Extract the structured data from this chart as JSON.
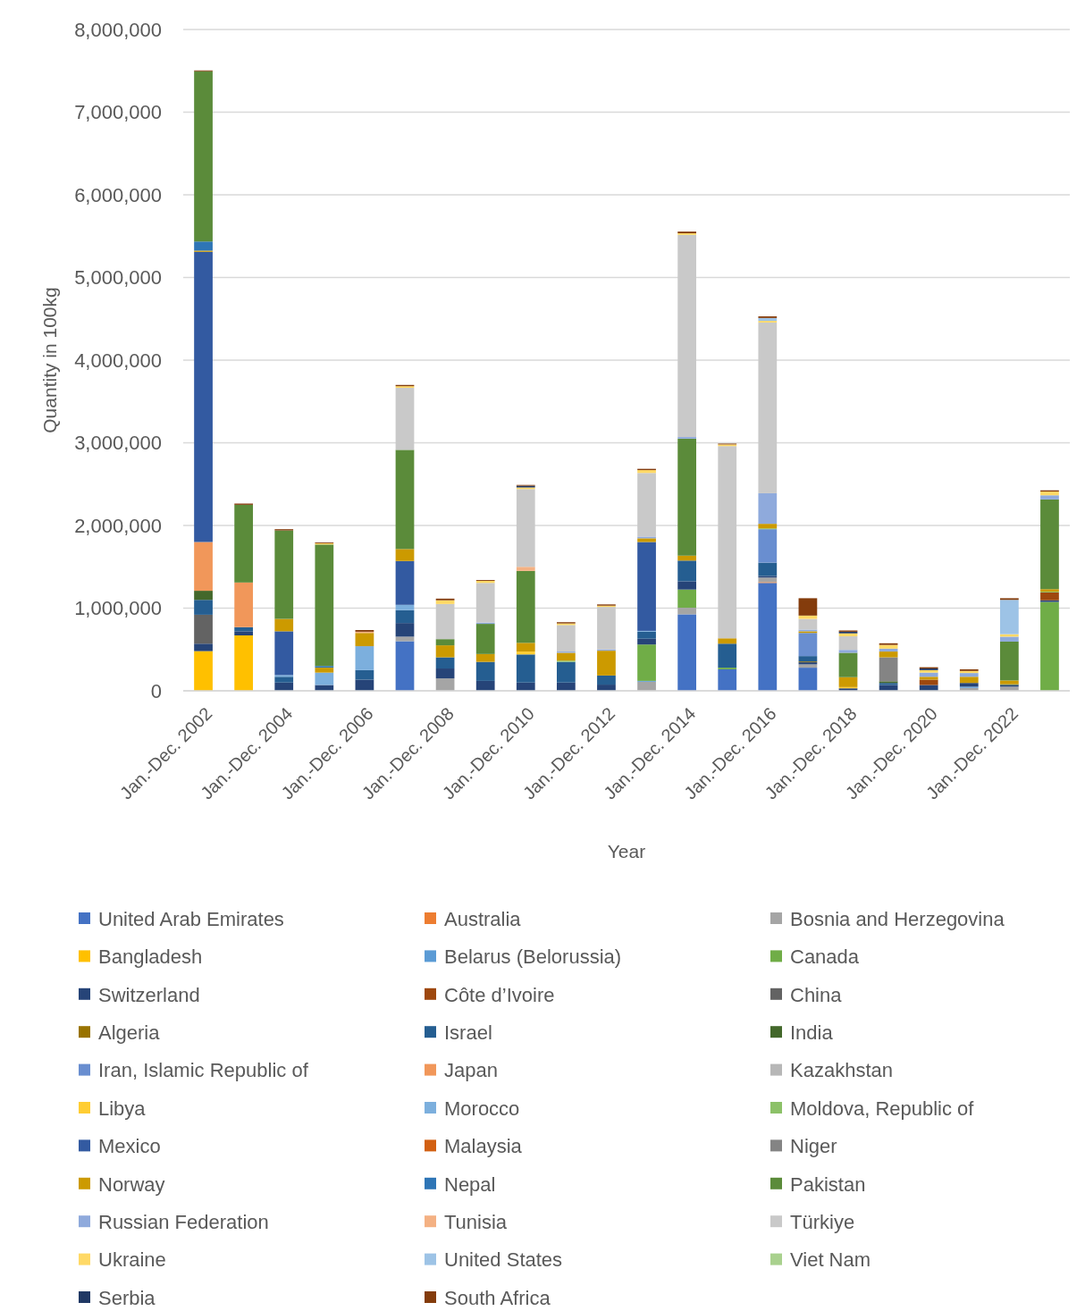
{
  "chart_data": {
    "type": "bar",
    "stacked": true,
    "xlabel": "Year",
    "ylabel": "Quantity in 100kg",
    "grid": "y",
    "legend": "bottom",
    "categories": [
      "Jan.-Dec. 2002",
      null,
      "Jan.-Dec. 2004",
      null,
      "Jan.-Dec. 2006",
      null,
      "Jan.-Dec. 2008",
      null,
      "Jan.-Dec. 2010",
      null,
      "Jan.-Dec. 2012",
      null,
      "Jan.-Dec. 2014",
      null,
      "Jan.-Dec. 2016",
      null,
      "Jan.-Dec. 2018",
      null,
      "Jan.-Dec. 2020",
      null,
      "Jan.-Dec. 2022",
      null
    ],
    "ylim": [
      0,
      8000000
    ],
    "yticks": [
      0,
      {
        "value": 1000000,
        "label": "1,000,000"
      },
      {
        "value": 2000000,
        "label": "2,000,000"
      },
      {
        "value": 3000000,
        "label": "3,000,000"
      },
      {
        "value": 4000000,
        "label": "4,000,000"
      },
      {
        "value": 5000000,
        "label": "5,000,000"
      },
      {
        "value": 6000000,
        "label": "6,000,000"
      },
      {
        "value": 7000000,
        "label": "7,000,000"
      },
      {
        "value": 8000000,
        "label": "8,000,000"
      }
    ],
    "series": [
      {
        "name": "United Arab Emirates",
        "color": "#4472c4",
        "values": [
          null,
          null,
          null,
          null,
          null,
          600000,
          null,
          null,
          null,
          null,
          null,
          null,
          925000,
          260000,
          1305000,
          280000,
          null,
          null,
          null,
          null,
          null,
          null
        ]
      },
      {
        "name": "Australia",
        "color": "#ed7d31",
        "values": [
          null,
          null,
          null,
          null,
          null,
          null,
          null,
          null,
          null,
          null,
          null,
          null,
          null,
          null,
          10000,
          null,
          null,
          null,
          null,
          null,
          null,
          null
        ]
      },
      {
        "name": "Bosnia and Herzegovina",
        "color": "#a5a5a5",
        "values": [
          null,
          null,
          null,
          null,
          null,
          55000,
          150000,
          null,
          null,
          null,
          null,
          110000,
          80000,
          null,
          55000,
          40000,
          null,
          null,
          null,
          35000,
          50000,
          null
        ]
      },
      {
        "name": "Bangladesh",
        "color": "#ffc000",
        "values": [
          480000,
          670000,
          null,
          null,
          null,
          null,
          null,
          null,
          null,
          null,
          null,
          null,
          null,
          null,
          null,
          null,
          null,
          null,
          null,
          null,
          null,
          null
        ]
      },
      {
        "name": "Belarus (Belorussia)",
        "color": "#5b9bd5",
        "values": [
          null,
          null,
          null,
          null,
          null,
          null,
          null,
          null,
          null,
          null,
          null,
          10000,
          null,
          null,
          null,
          null,
          null,
          null,
          null,
          15000,
          null,
          null
        ]
      },
      {
        "name": "Canada",
        "color": "#70ad47",
        "values": [
          null,
          null,
          null,
          null,
          null,
          null,
          null,
          null,
          null,
          null,
          null,
          440000,
          220000,
          20000,
          null,
          null,
          null,
          null,
          null,
          null,
          null,
          1075000
        ]
      },
      {
        "name": "Switzerland",
        "color": "#264478",
        "values": [
          90000,
          50000,
          100000,
          70000,
          135000,
          165000,
          120000,
          120000,
          100000,
          100000,
          75000,
          70000,
          100000,
          null,
          20000,
          25000,
          30000,
          70000,
          70000,
          45000,
          20000,
          20000
        ]
      },
      {
        "name": "Côte d’Ivoire",
        "color": "#9e480e",
        "values": [
          null,
          null,
          null,
          null,
          null,
          null,
          null,
          null,
          null,
          null,
          null,
          null,
          null,
          null,
          null,
          null,
          null,
          null,
          65000,
          null,
          null,
          95000
        ]
      },
      {
        "name": "China",
        "color": "#636363",
        "values": [
          350000,
          null,
          null,
          null,
          null,
          null,
          null,
          null,
          null,
          null,
          null,
          null,
          null,
          null,
          null,
          null,
          null,
          null,
          null,
          null,
          null,
          null
        ]
      },
      {
        "name": "Algeria",
        "color": "#997300",
        "values": [
          null,
          null,
          null,
          null,
          null,
          null,
          null,
          null,
          null,
          null,
          null,
          null,
          null,
          null,
          null,
          10000,
          null,
          null,
          null,
          null,
          null,
          null
        ]
      },
      {
        "name": "Israel",
        "color": "#255e91",
        "values": [
          180000,
          50000,
          70000,
          null,
          115000,
          155000,
          135000,
          230000,
          340000,
          250000,
          110000,
          85000,
          250000,
          290000,
          160000,
          65000,
          null,
          25000,
          null,
          null,
          null,
          null
        ]
      },
      {
        "name": "India",
        "color": "#43682b",
        "values": [
          110000,
          null,
          null,
          null,
          null,
          null,
          null,
          null,
          null,
          null,
          null,
          null,
          null,
          null,
          null,
          null,
          null,
          20000,
          null,
          null,
          10000,
          null
        ]
      },
      {
        "name": "Iran, Islamic Republic of",
        "color": "#698ed0",
        "values": [
          null,
          null,
          null,
          null,
          null,
          null,
          null,
          null,
          null,
          null,
          null,
          null,
          null,
          null,
          405000,
          280000,
          null,
          null,
          null,
          null,
          null,
          null
        ]
      },
      {
        "name": "Japan",
        "color": "#f1975a",
        "values": [
          590000,
          540000,
          null,
          null,
          null,
          null,
          null,
          null,
          null,
          null,
          null,
          null,
          null,
          null,
          null,
          null,
          null,
          null,
          null,
          null,
          null,
          null
        ]
      },
      {
        "name": "Kazakhstan",
        "color": "#b7b7b7",
        "values": [
          null,
          null,
          null,
          null,
          null,
          null,
          null,
          null,
          null,
          null,
          null,
          null,
          null,
          null,
          null,
          null,
          null,
          null,
          null,
          null,
          null,
          null
        ]
      },
      {
        "name": "Libya",
        "color": "#ffcd33",
        "values": [
          null,
          null,
          null,
          null,
          null,
          null,
          null,
          null,
          35000,
          null,
          null,
          null,
          null,
          null,
          null,
          null,
          15000,
          null,
          null,
          null,
          null,
          null
        ]
      },
      {
        "name": "Morocco",
        "color": "#7cafdd",
        "values": [
          null,
          null,
          20000,
          150000,
          290000,
          65000,
          null,
          null,
          null,
          null,
          null,
          10000,
          null,
          null,
          null,
          null,
          null,
          null,
          null,
          null,
          null,
          null
        ]
      },
      {
        "name": "Moldova, Republic of",
        "color": "#8cc168",
        "values": [
          null,
          null,
          null,
          null,
          null,
          null,
          null,
          null,
          null,
          15000,
          null,
          null,
          null,
          null,
          10000,
          null,
          null,
          null,
          null,
          null,
          null,
          10000
        ]
      },
      {
        "name": "Mexico",
        "color": "#335aa1",
        "values": [
          3510000,
          null,
          530000,
          null,
          null,
          530000,
          null,
          null,
          null,
          null,
          null,
          1075000,
          null,
          null,
          null,
          null,
          null,
          null,
          null,
          null,
          null,
          null
        ]
      },
      {
        "name": "Malaysia",
        "color": "#d26012",
        "values": [
          null,
          null,
          null,
          null,
          null,
          null,
          null,
          null,
          null,
          null,
          null,
          null,
          null,
          null,
          null,
          null,
          null,
          null,
          null,
          null,
          null,
          null
        ]
      },
      {
        "name": "Niger",
        "color": "#848484",
        "values": [
          null,
          null,
          null,
          null,
          null,
          null,
          null,
          null,
          null,
          null,
          null,
          null,
          null,
          null,
          null,
          null,
          null,
          290000,
          null,
          null,
          null,
          null
        ]
      },
      {
        "name": "Norway",
        "color": "#cc9a00",
        "values": [
          15000,
          null,
          150000,
          60000,
          160000,
          145000,
          145000,
          95000,
          105000,
          95000,
          300000,
          45000,
          60000,
          65000,
          55000,
          20000,
          120000,
          70000,
          35000,
          75000,
          45000,
          30000
        ]
      },
      {
        "name": "Nepal",
        "color": "#2e75b6",
        "values": [
          110000,
          null,
          null,
          20000,
          null,
          null,
          null,
          null,
          null,
          null,
          null,
          null,
          null,
          null,
          null,
          null,
          null,
          null,
          null,
          null,
          null,
          null
        ]
      },
      {
        "name": "Pakistan",
        "color": "#5b8b3a",
        "values": [
          2060000,
          940000,
          1070000,
          1470000,
          null,
          1200000,
          75000,
          365000,
          870000,
          null,
          null,
          null,
          1415000,
          null,
          null,
          null,
          295000,
          null,
          null,
          null,
          470000,
          1085000
        ]
      },
      {
        "name": "Russian Federation",
        "color": "#8faadc",
        "values": [
          null,
          null,
          null,
          null,
          null,
          null,
          null,
          15000,
          null,
          15000,
          15000,
          20000,
          20000,
          null,
          370000,
          20000,
          35000,
          35000,
          50000,
          45000,
          60000,
          50000
        ]
      },
      {
        "name": "Tunisia",
        "color": "#f4b183",
        "values": [
          null,
          null,
          null,
          null,
          15000,
          null,
          null,
          null,
          50000,
          null,
          null,
          null,
          null,
          null,
          null,
          null,
          null,
          null,
          null,
          null,
          null,
          null
        ]
      },
      {
        "name": "Türkiye",
        "color": "#c9c9c9",
        "values": [
          null,
          null,
          null,
          null,
          null,
          750000,
          425000,
          480000,
          940000,
          320000,
          515000,
          770000,
          2445000,
          2325000,
          2065000,
          130000,
          165000,
          null,
          null,
          null,
          null,
          null
        ]
      },
      {
        "name": "Ukraine",
        "color": "#ffd966",
        "values": [
          null,
          null,
          null,
          15000,
          null,
          20000,
          45000,
          25000,
          20000,
          20000,
          15000,
          35000,
          20000,
          20000,
          20000,
          40000,
          35000,
          45000,
          30000,
          25000,
          30000,
          45000
        ]
      },
      {
        "name": "United States",
        "color": "#9dc3e6",
        "values": [
          null,
          null,
          null,
          null,
          null,
          null,
          null,
          null,
          null,
          null,
          null,
          null,
          null,
          null,
          35000,
          null,
          null,
          null,
          null,
          null,
          415000,
          null
        ]
      },
      {
        "name": "Viet Nam",
        "color": "#a9d18e",
        "values": [
          null,
          null,
          null,
          null,
          null,
          null,
          null,
          null,
          null,
          null,
          null,
          null,
          null,
          null,
          null,
          null,
          null,
          null,
          null,
          null,
          null,
          null
        ]
      },
      {
        "name": "Serbia",
        "color": "#203864",
        "values": [
          null,
          null,
          null,
          null,
          null,
          null,
          null,
          null,
          20000,
          null,
          null,
          null,
          null,
          null,
          null,
          null,
          20000,
          null,
          20000,
          null,
          null,
          null
        ]
      },
      {
        "name": "South Africa",
        "color": "#843c0c",
        "values": [
          10000,
          15000,
          15000,
          10000,
          20000,
          15000,
          20000,
          10000,
          10000,
          15000,
          15000,
          15000,
          20000,
          10000,
          20000,
          210000,
          15000,
          20000,
          15000,
          20000,
          20000,
          15000
        ]
      }
    ]
  }
}
